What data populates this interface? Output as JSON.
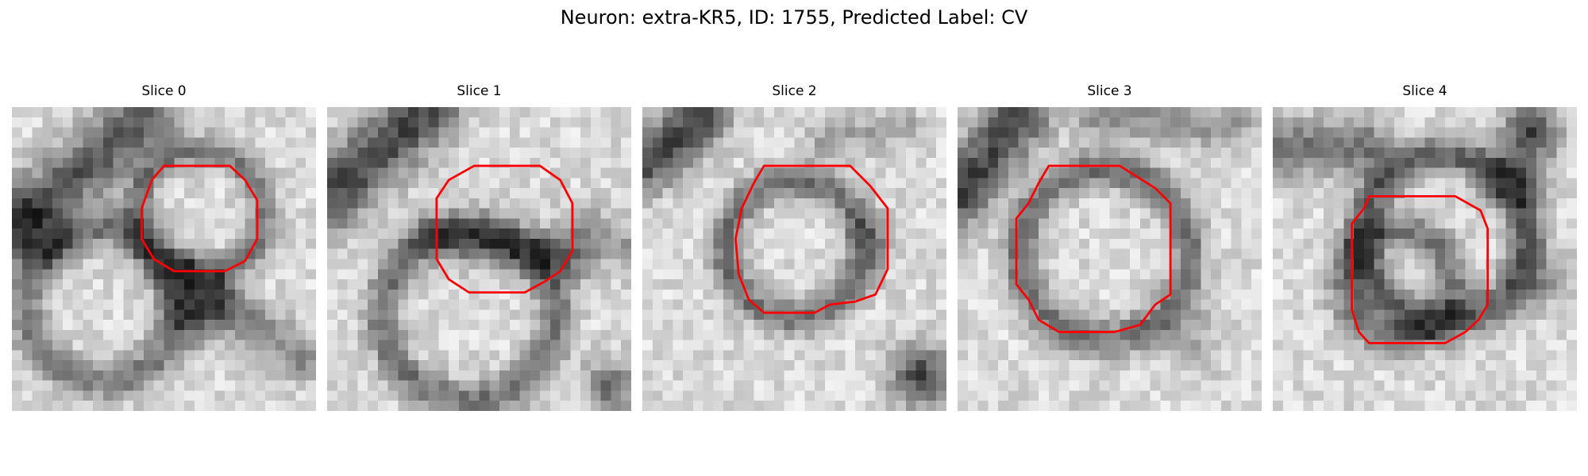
{
  "figure": {
    "title": "Neuron: extra-KR5, ID: 1755, Predicted Label: CV"
  },
  "colors": {
    "background": "#ffffff",
    "contour": "#ff0000"
  },
  "slices": [
    {
      "label": "Slice 0"
    },
    {
      "label": "Slice 1"
    },
    {
      "label": "Slice 2"
    },
    {
      "label": "Slice 3"
    },
    {
      "label": "Slice 4"
    }
  ]
}
